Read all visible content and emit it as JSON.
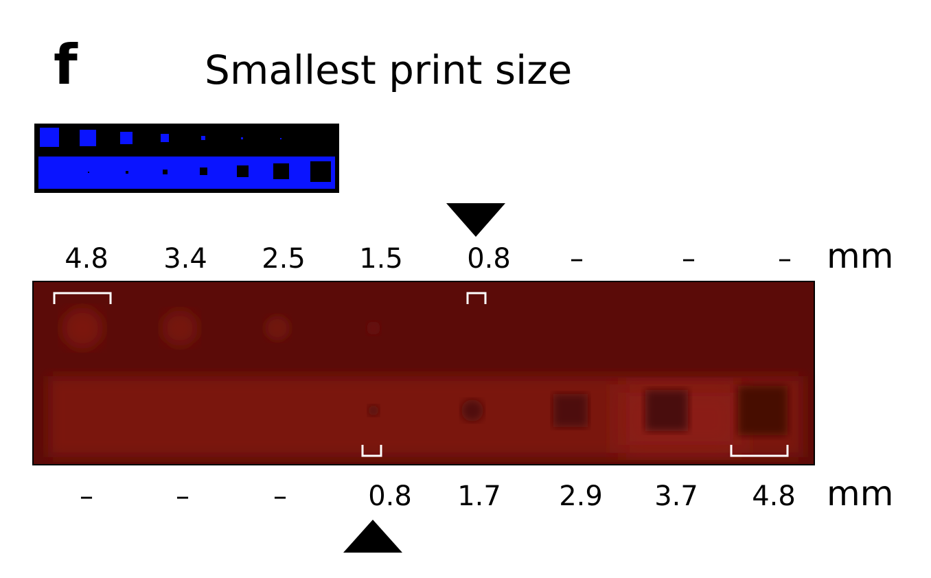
{
  "panel_label": "f",
  "title": "Smallest print size",
  "top_row": {
    "labels": [
      "4.8",
      "3.4",
      "2.5",
      "1.5",
      "0.8",
      "–",
      "–",
      "–"
    ],
    "unit": "mm"
  },
  "bottom_row": {
    "labels": [
      "–",
      "–",
      "–",
      "0.8",
      "1.7",
      "2.9",
      "3.7",
      "4.8"
    ],
    "unit": "mm"
  }
}
